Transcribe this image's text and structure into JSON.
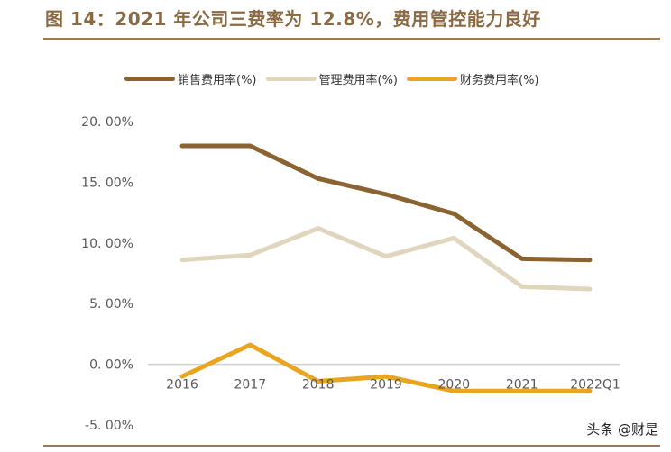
{
  "header": {
    "title": "图 14：2021 年公司三费率为 12.8%，费用管控能力良好"
  },
  "watermark": "头条 @财是",
  "chart_data": {
    "type": "line",
    "title": "图 14：2021 年公司三费率为 12.8%，费用管控能力良好",
    "xlabel": "",
    "ylabel": "",
    "categories": [
      "2016",
      "2017",
      "2018",
      "2019",
      "2020",
      "2021",
      "2022Q1"
    ],
    "ylim": [
      -5,
      20
    ],
    "yticks": [
      20,
      15,
      10,
      5,
      0,
      -5
    ],
    "ytick_labels": [
      "20. 00%",
      "15. 00%",
      "10. 00%",
      "5. 00%",
      "0. 00%",
      "-5. 00%"
    ],
    "grid": false,
    "legend_position": "top",
    "series": [
      {
        "name": "销售费用率(%)",
        "color": "#8b6331",
        "values": [
          18.0,
          18.0,
          15.3,
          14.0,
          12.4,
          8.7,
          8.6
        ]
      },
      {
        "name": "管理费用率(%)",
        "color": "#e0d5bd",
        "values": [
          8.6,
          9.0,
          11.2,
          8.9,
          10.4,
          6.4,
          6.2
        ]
      },
      {
        "name": "财务费用率(%)",
        "color": "#e9a520",
        "values": [
          -1.0,
          1.6,
          -1.4,
          -1.0,
          -2.2,
          -2.2,
          -2.2
        ]
      }
    ]
  }
}
